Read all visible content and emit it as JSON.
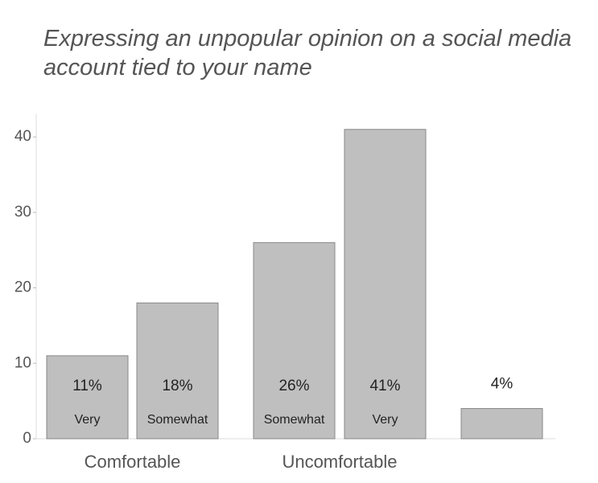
{
  "chart_data": {
    "type": "bar",
    "title": "Expressing an unpopular opinion on a social media account tied to your name",
    "categories": [
      "Very",
      "Somewhat",
      "Somewhat",
      "Very",
      null
    ],
    "groups": [
      "Comfortable",
      "Uncomfortable"
    ],
    "values": [
      11,
      18,
      26,
      41,
      4
    ],
    "value_labels": [
      "11%",
      "18%",
      "26%",
      "41%",
      "4%"
    ],
    "color": "#bfbfbf",
    "ylim": [
      0,
      43
    ],
    "yticks": [
      0,
      10,
      20,
      30,
      40
    ],
    "grid": false
  }
}
